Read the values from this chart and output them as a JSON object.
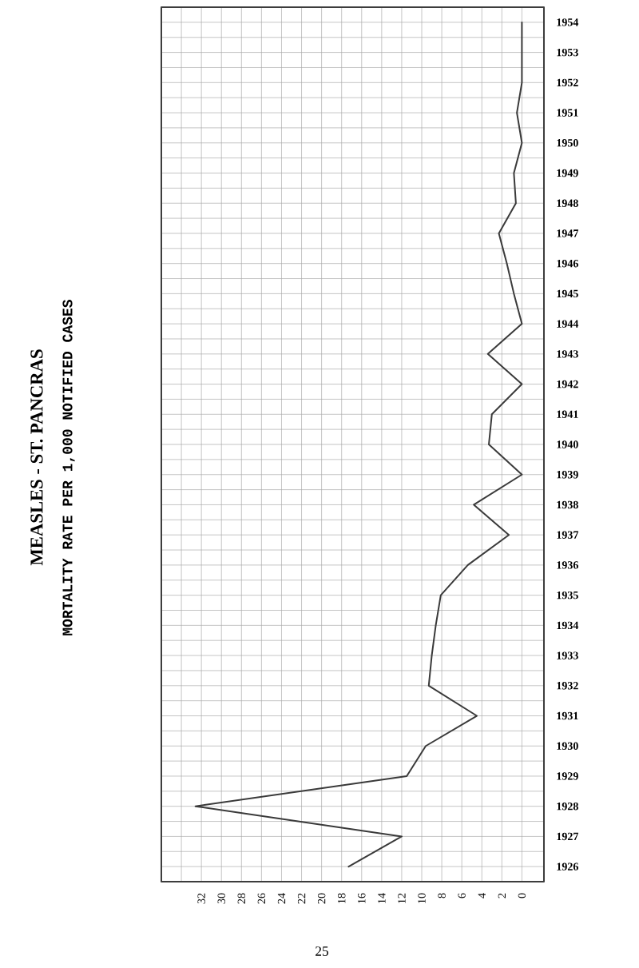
{
  "chart_data": {
    "type": "line",
    "orientation": "horizontal",
    "title": "MEASLES - ST. PANCRAS",
    "subtitle": "MORTALITY RATE PER 1,000 NOTIFIED CASES",
    "categories": [
      "1954",
      "1953",
      "1952",
      "1951",
      "1950",
      "1949",
      "1948",
      "1947",
      "1946",
      "1945",
      "1944",
      "1943",
      "1942",
      "1941",
      "1940",
      "1939",
      "1938",
      "1937",
      "1936",
      "1935",
      "1934",
      "1933",
      "1932",
      "1931",
      "1930",
      "1929",
      "1928",
      "1927",
      "1926"
    ],
    "values": [
      0,
      0,
      0,
      0.5,
      0,
      0.8,
      0.6,
      2.3,
      1.5,
      0.8,
      0,
      3.4,
      0,
      3.0,
      3.3,
      0,
      4.8,
      1.3,
      5.4,
      8.1,
      8.6,
      9.0,
      9.3,
      4.5,
      9.6,
      11.5,
      32.6,
      12,
      17.3
    ],
    "color": "#3a3a3a",
    "xlim": [
      36,
      -2.2
    ],
    "xticks": [
      0,
      2,
      4,
      6,
      8,
      10,
      12,
      14,
      16,
      18,
      20,
      22,
      24,
      26,
      28,
      30,
      32,
      {
        "value": 34,
        "label": null
      }
    ],
    "grid": true,
    "line_style": "solid",
    "marker": "none",
    "annotations": [
      "25"
    ]
  }
}
